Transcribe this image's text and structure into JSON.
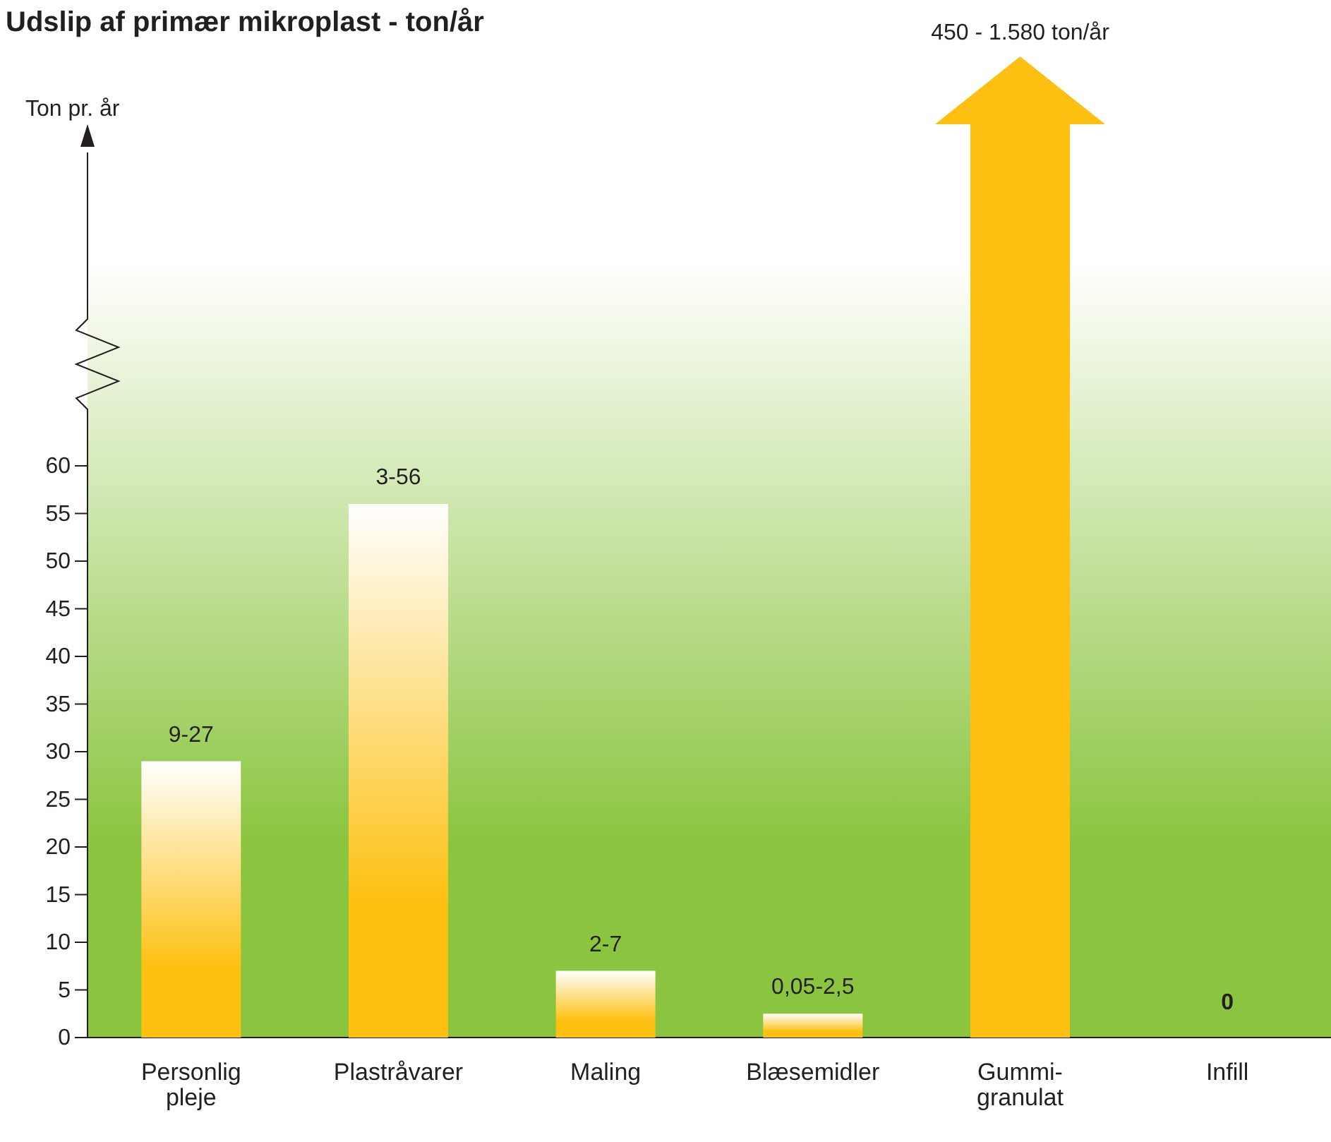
{
  "chart_data": {
    "type": "bar",
    "title": "Udslip af primær mikroplast - ton/år",
    "annotations": [
      "Ton pr. år"
    ],
    "categories": [
      "Personlig pleje",
      "Plastråvarer",
      "Maling",
      "Blæsemidler",
      "Gummi-granulat",
      "Infill"
    ],
    "values": [
      29,
      56,
      7,
      2.5,
      null,
      0
    ],
    "value_labels": [
      "9-27",
      "3-56",
      "2-7",
      "0,05-2,5",
      "450 - 1.580 ton/år",
      "0"
    ],
    "color": "#fdc010",
    "ylim": [
      0,
      60
    ],
    "yticks": [
      0,
      5,
      10,
      15,
      20,
      25,
      30,
      35,
      40,
      45,
      50,
      55,
      60
    ]
  }
}
